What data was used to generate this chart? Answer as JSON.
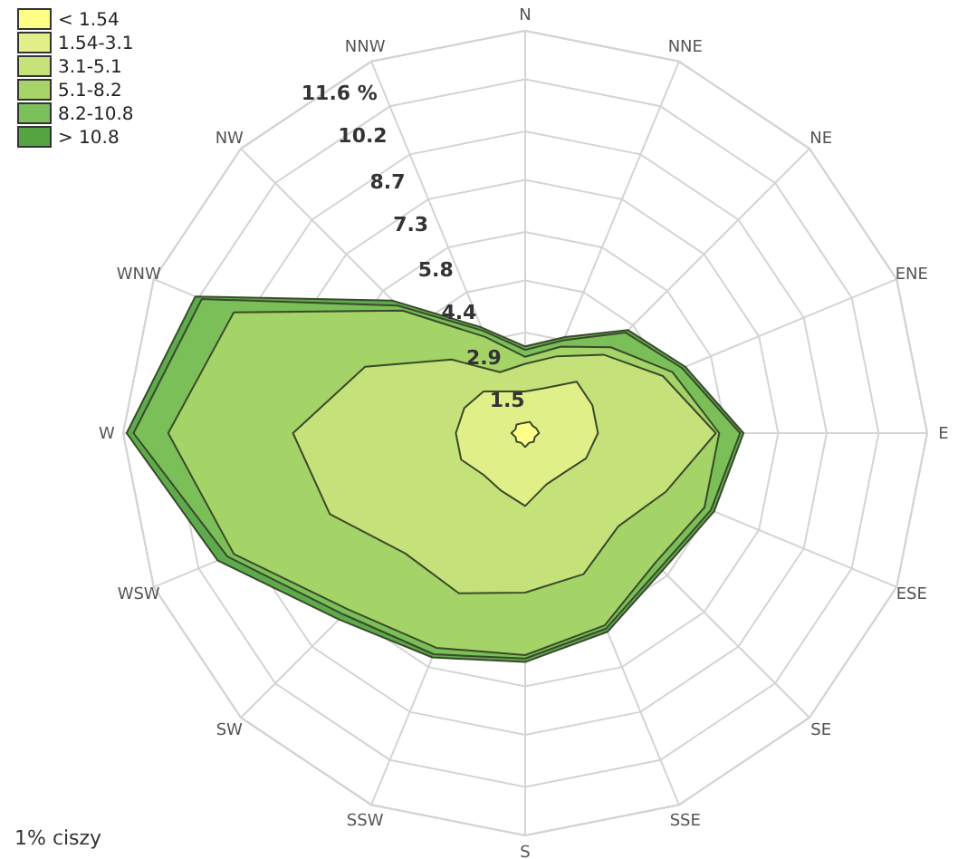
{
  "chart_data": {
    "type": "radar",
    "categories": [
      "N",
      "NNE",
      "NE",
      "ENE",
      "E",
      "ESE",
      "SE",
      "SSE",
      "S",
      "SSW",
      "SW",
      "WSW",
      "W",
      "WNW",
      "NW",
      "NNW"
    ],
    "ylim": [
      0,
      11.6
    ],
    "yticks": [
      1.5,
      2.9,
      4.4,
      5.8,
      7.3,
      8.7,
      10.2,
      {
        "value": 11.6,
        "label": "11.6 %"
      }
    ],
    "grid": true,
    "legend": "top left",
    "annotations": [
      "1% ciszy"
    ],
    "series": [
      {
        "name": "< 1.54",
        "color": "#ffff88",
        "values": [
          0.3,
          0.35,
          0.3,
          0.35,
          0.4,
          0.3,
          0.35,
          0.3,
          0.4,
          0.3,
          0.35,
          0.3,
          0.4,
          0.3,
          0.35,
          0.3
        ]
      },
      {
        "name": "1.54-3.1",
        "color": "#e2ef88",
        "values": [
          1.2,
          1.4,
          2.1,
          2.1,
          2.1,
          1.9,
          1.6,
          1.6,
          2.1,
          1.8,
          1.7,
          2.0,
          2.0,
          1.9,
          1.7,
          1.3
        ]
      },
      {
        "name": "3.1-5.1",
        "color": "#c6e37a",
        "values": [
          2.0,
          2.4,
          3.2,
          4.3,
          5.5,
          4.4,
          3.8,
          4.4,
          4.6,
          5.0,
          4.9,
          6.1,
          6.7,
          5.0,
          3.0,
          1.9
        ]
      },
      {
        "name": "5.1-8.2",
        "color": "#a6d468",
        "values": [
          2.2,
          2.7,
          3.5,
          4.6,
          5.6,
          5.6,
          5.3,
          6.0,
          6.4,
          6.7,
          7.2,
          9.1,
          10.3,
          9.1,
          5.0,
          3.0
        ]
      },
      {
        "name": "8.2-10.8",
        "color": "#7cc05a",
        "values": [
          2.4,
          2.9,
          4.1,
          4.9,
          6.2,
          5.8,
          5.5,
          6.1,
          6.5,
          6.9,
          7.4,
          9.3,
          11.3,
          10.1,
          5.2,
          3.2
        ]
      },
      {
        "name": "> 10.8",
        "color": "#55a643",
        "values": [
          2.5,
          3.0,
          4.2,
          5.0,
          6.3,
          5.9,
          5.6,
          6.2,
          6.6,
          7.0,
          7.6,
          9.6,
          11.5,
          10.3,
          5.4,
          3.3
        ]
      }
    ]
  }
}
